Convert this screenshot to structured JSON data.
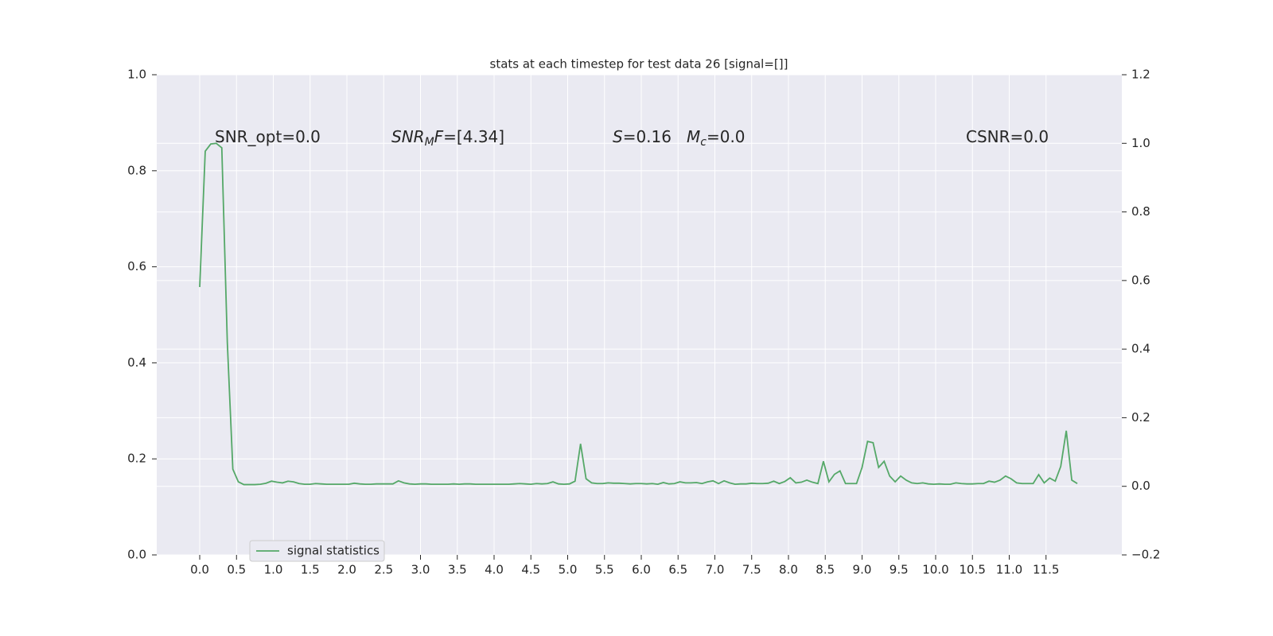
{
  "chart_data": {
    "type": "line",
    "title": "stats at each timestep for test data 26 [signal=[]]",
    "x": [
      0,
      0.075,
      0.15,
      0.225,
      0.3,
      0.375,
      0.45,
      0.525,
      0.6,
      0.675,
      0.75,
      0.825,
      0.9,
      0.975,
      1.05,
      1.125,
      1.2,
      1.275,
      1.35,
      1.425,
      1.5,
      1.575,
      1.65,
      1.725,
      1.8,
      1.875,
      1.95,
      2.025,
      2.1,
      2.175,
      2.25,
      2.325,
      2.4,
      2.475,
      2.55,
      2.625,
      2.7,
      2.775,
      2.85,
      2.925,
      3.0,
      3.075,
      3.15,
      3.225,
      3.3,
      3.375,
      3.45,
      3.525,
      3.6,
      3.675,
      3.75,
      3.825,
      3.9,
      3.975,
      4.05,
      4.125,
      4.2,
      4.275,
      4.35,
      4.425,
      4.5,
      4.575,
      4.65,
      4.725,
      4.8,
      4.875,
      4.95,
      5.025,
      5.1,
      5.175,
      5.25,
      5.325,
      5.4,
      5.475,
      5.55,
      5.625,
      5.7,
      5.775,
      5.85,
      5.925,
      6.0,
      6.075,
      6.15,
      6.225,
      6.3,
      6.375,
      6.45,
      6.525,
      6.6,
      6.675,
      6.75,
      6.825,
      6.9,
      6.975,
      7.05,
      7.125,
      7.2,
      7.275,
      7.35,
      7.425,
      7.5,
      7.575,
      7.65,
      7.725,
      7.8,
      7.875,
      7.95,
      8.025,
      8.1,
      8.175,
      8.25,
      8.325,
      8.4,
      8.475,
      8.55,
      8.625,
      8.7,
      8.775,
      8.85,
      8.925,
      9.0,
      9.075,
      9.15,
      9.225,
      9.3,
      9.375,
      9.45,
      9.525,
      9.6,
      9.675,
      9.75,
      9.825,
      9.9,
      9.975,
      10.05,
      10.125,
      10.2,
      10.275,
      10.35,
      10.425,
      10.5,
      10.575,
      10.65,
      10.725,
      10.8,
      10.875,
      10.95,
      11.025,
      11.1,
      11.175,
      11.25,
      11.325,
      11.4,
      11.475,
      11.55,
      11.625,
      11.7,
      11.775,
      11.85,
      11.925
    ],
    "series": [
      {
        "name": "signal statistics",
        "color": "#55a868",
        "axis": "y2",
        "values": [
          0.581,
          0.977,
          0.998,
          1.0,
          0.987,
          0.42,
          0.05,
          0.013,
          0.005,
          0.005,
          0.005,
          0.006,
          0.009,
          0.015,
          0.012,
          0.01,
          0.015,
          0.013,
          0.008,
          0.006,
          0.006,
          0.008,
          0.007,
          0.006,
          0.006,
          0.006,
          0.006,
          0.006,
          0.009,
          0.007,
          0.006,
          0.006,
          0.007,
          0.007,
          0.007,
          0.007,
          0.016,
          0.01,
          0.007,
          0.006,
          0.007,
          0.007,
          0.006,
          0.006,
          0.006,
          0.006,
          0.007,
          0.006,
          0.007,
          0.007,
          0.006,
          0.006,
          0.006,
          0.006,
          0.006,
          0.006,
          0.006,
          0.007,
          0.008,
          0.007,
          0.006,
          0.008,
          0.007,
          0.008,
          0.013,
          0.007,
          0.006,
          0.007,
          0.015,
          0.124,
          0.022,
          0.01,
          0.008,
          0.008,
          0.01,
          0.009,
          0.009,
          0.008,
          0.007,
          0.008,
          0.008,
          0.007,
          0.008,
          0.006,
          0.011,
          0.007,
          0.008,
          0.013,
          0.01,
          0.01,
          0.011,
          0.008,
          0.013,
          0.016,
          0.008,
          0.016,
          0.01,
          0.006,
          0.007,
          0.007,
          0.009,
          0.008,
          0.008,
          0.009,
          0.015,
          0.008,
          0.014,
          0.025,
          0.01,
          0.012,
          0.018,
          0.012,
          0.008,
          0.073,
          0.013,
          0.035,
          0.045,
          0.008,
          0.008,
          0.008,
          0.055,
          0.131,
          0.127,
          0.055,
          0.073,
          0.03,
          0.013,
          0.03,
          0.018,
          0.01,
          0.008,
          0.01,
          0.007,
          0.006,
          0.007,
          0.006,
          0.006,
          0.01,
          0.008,
          0.007,
          0.007,
          0.008,
          0.008,
          0.015,
          0.012,
          0.018,
          0.03,
          0.022,
          0.01,
          0.008,
          0.008,
          0.008,
          0.034,
          0.01,
          0.024,
          0.015,
          0.058,
          0.162,
          0.018,
          0.008
        ]
      }
    ],
    "xlim": [
      -0.584,
      12.53
    ],
    "xticks": [
      {
        "value": 0,
        "label": "0.0"
      },
      0.5,
      {
        "value": 1,
        "label": "1.0"
      },
      1.5,
      {
        "value": 2,
        "label": "2.0"
      },
      2.5,
      {
        "value": 3,
        "label": "3.0"
      },
      3.5,
      {
        "value": 4,
        "label": "4.0"
      },
      4.5,
      {
        "value": 5,
        "label": "5.0"
      },
      5.5,
      {
        "value": 6,
        "label": "6.0"
      },
      6.5,
      {
        "value": 7,
        "label": "7.0"
      },
      7.5,
      {
        "value": 8,
        "label": "8.0"
      },
      8.5,
      {
        "value": 9,
        "label": "9.0"
      },
      9.5,
      {
        "value": 10,
        "label": "10.0"
      },
      10.5,
      {
        "value": 11,
        "label": "11.0"
      },
      11.5
    ],
    "ylim": [
      0,
      1
    ],
    "yticks": [
      {
        "value": 0,
        "label": "0.0"
      },
      0.2,
      0.4,
      0.6,
      0.8,
      {
        "value": 1,
        "label": "1.0"
      }
    ],
    "y2lim": [
      -0.2,
      1.2
    ],
    "y2ticks": [
      {
        "value": -0.2,
        "label": "−0.2"
      },
      {
        "value": 0,
        "label": "0.0"
      },
      0.2,
      0.4,
      0.6,
      0.8,
      {
        "value": 1,
        "label": "1.0"
      },
      1.2
    ],
    "grid": true,
    "legend": "lower left",
    "annotations": [
      [
        {
          "text": "SNR_opt=0.0"
        }
      ],
      [
        {
          "text": "SNR",
          "italic": true
        },
        {
          "text": "M",
          "italic": true,
          "sub": true
        },
        {
          "text": "F",
          "italic": true
        },
        {
          "text": "=[4.34]"
        }
      ],
      [
        {
          "text": "S",
          "italic": true
        },
        {
          "text": "=0.16"
        }
      ],
      [
        {
          "text": "M",
          "italic": true
        },
        {
          "text": "c",
          "italic": true,
          "sub": true
        },
        {
          "text": "=0.0"
        }
      ],
      [
        {
          "text": "CSNR=0.0"
        }
      ]
    ]
  }
}
